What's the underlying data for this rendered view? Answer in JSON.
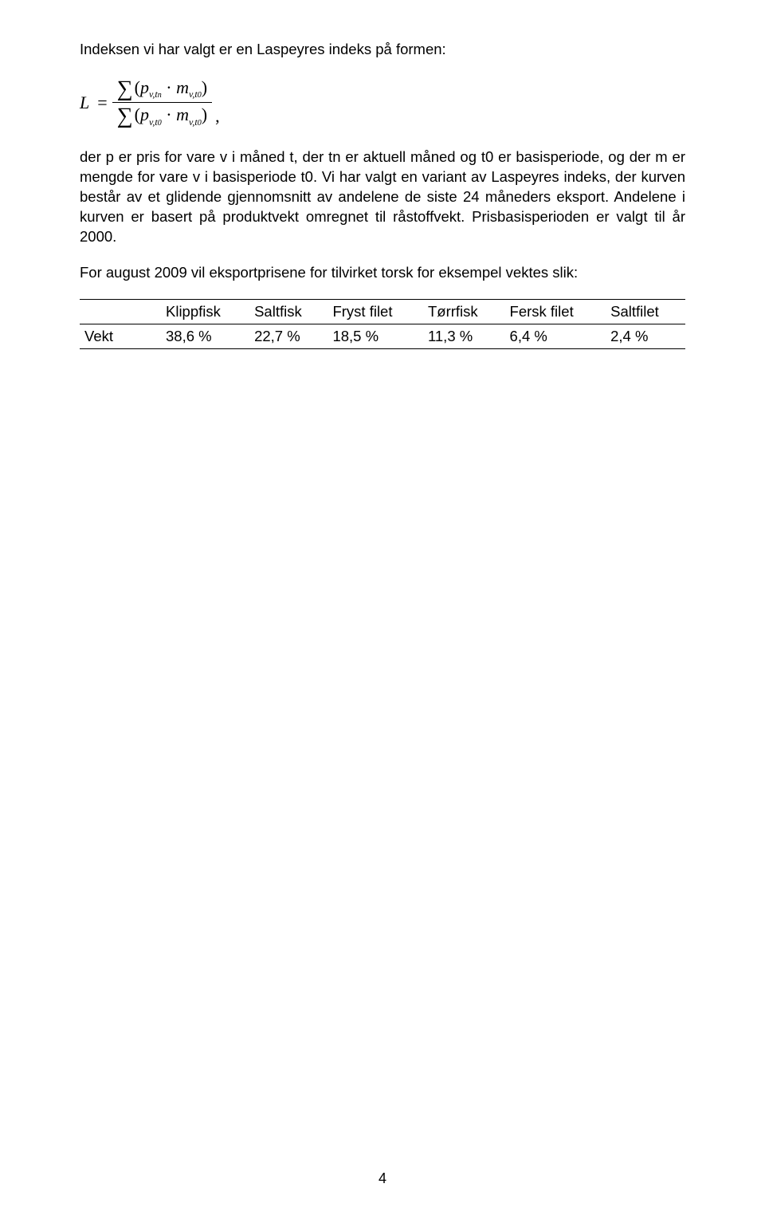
{
  "intro_line": "Indeksen vi har valgt er en Laspeyres indeks på formen:",
  "formula": {
    "L": "L",
    "eq": "=",
    "comma": ","
  },
  "body_text_1": "der p er pris for vare v i måned t, der tn er aktuell måned og t0 er basisperiode, og der m er mengde for vare v i basisperiode t0. Vi har valgt en variant av Laspeyres indeks, der kurven består av et glidende gjennomsnitt av andelene de siste 24 måneders eksport. Andelene i kurven er basert på produktvekt omregnet til råstoffvekt. Prisbasisperioden er valgt til år 2000.",
  "body_text_2": "For august 2009 vil eksportprisene for tilvirket torsk for eksempel vektes slik:",
  "table": {
    "columns": [
      "",
      "Klippfisk",
      "Saltfisk",
      "Fryst filet",
      "Tørrfisk",
      "Fersk filet",
      "Saltfilet"
    ],
    "row_label": "Vekt",
    "row_values": [
      "38,6 %",
      "22,7 %",
      "18,5 %",
      "11,3 %",
      "6,4 %",
      "2,4 %"
    ]
  },
  "page_number": "4",
  "style": {
    "background_color": "#ffffff",
    "text_color": "#000000",
    "body_font_size": 18.5,
    "formula_font_family": "Times New Roman",
    "border_color": "#000000"
  }
}
